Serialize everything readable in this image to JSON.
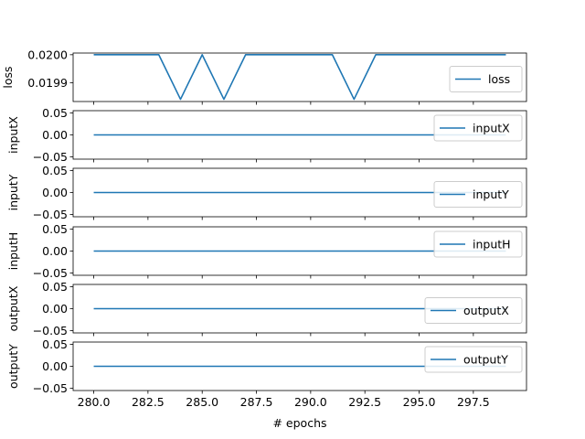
{
  "chart_data": [
    {
      "type": "line",
      "ylabel": "loss",
      "legend": "loss",
      "legend_placement": "right",
      "ylim": [
        0.019833,
        0.020006
      ],
      "yticks": [
        0.0199,
        0.02
      ],
      "ytick_labels": [
        "0.0199",
        "0.0200"
      ],
      "series": [
        {
          "name": "loss",
          "x": [
            280,
            281,
            282,
            283,
            284,
            285,
            286,
            287,
            288,
            289,
            290,
            291,
            292,
            293,
            294,
            295,
            296,
            297,
            298,
            299
          ],
          "y": [
            0.02,
            0.02,
            0.02,
            0.02,
            0.019841,
            0.02,
            0.019841,
            0.02,
            0.02,
            0.02,
            0.02,
            0.02,
            0.019841,
            0.02,
            0.02,
            0.02,
            0.02,
            0.02,
            0.02,
            0.02
          ]
        }
      ]
    },
    {
      "type": "line",
      "ylabel": "inputX",
      "legend": "inputX",
      "legend_placement": "upper right",
      "ylim": [
        -0.055,
        0.055
      ],
      "yticks": [
        -0.05,
        0.0,
        0.05
      ],
      "ytick_labels": [
        "−0.05",
        "0.00",
        "0.05"
      ],
      "series": [
        {
          "name": "inputX",
          "x": [
            280,
            281,
            282,
            283,
            284,
            285,
            286,
            287,
            288,
            289,
            290,
            291,
            292,
            293,
            294,
            295,
            296,
            297,
            298,
            299
          ],
          "y": [
            0,
            0,
            0,
            0,
            0,
            0,
            0,
            0,
            0,
            0,
            0,
            0,
            0,
            0,
            0,
            0,
            0,
            0,
            0,
            0
          ]
        }
      ]
    },
    {
      "type": "line",
      "ylabel": "inputY",
      "legend": "inputY",
      "legend_placement": "right",
      "ylim": [
        -0.055,
        0.055
      ],
      "yticks": [
        -0.05,
        0.0,
        0.05
      ],
      "ytick_labels": [
        "−0.05",
        "0.00",
        "0.05"
      ],
      "series": [
        {
          "name": "inputY",
          "x": [
            280,
            281,
            282,
            283,
            284,
            285,
            286,
            287,
            288,
            289,
            290,
            291,
            292,
            293,
            294,
            295,
            296,
            297,
            298,
            299
          ],
          "y": [
            0,
            0,
            0,
            0,
            0,
            0,
            0,
            0,
            0,
            0,
            0,
            0,
            0,
            0,
            0,
            0,
            0,
            0,
            0,
            0
          ]
        }
      ]
    },
    {
      "type": "line",
      "ylabel": "inputH",
      "legend": "inputH",
      "legend_placement": "upper right",
      "ylim": [
        -0.055,
        0.055
      ],
      "yticks": [
        -0.05,
        0.0,
        0.05
      ],
      "ytick_labels": [
        "−0.05",
        "0.00",
        "0.05"
      ],
      "series": [
        {
          "name": "inputH",
          "x": [
            280,
            281,
            282,
            283,
            284,
            285,
            286,
            287,
            288,
            289,
            290,
            291,
            292,
            293,
            294,
            295,
            296,
            297,
            298,
            299
          ],
          "y": [
            0,
            0,
            0,
            0,
            0,
            0,
            0,
            0,
            0,
            0,
            0,
            0,
            0,
            0,
            0,
            0,
            0,
            0,
            0,
            0
          ]
        }
      ]
    },
    {
      "type": "line",
      "ylabel": "outputX",
      "legend": "outputX",
      "legend_placement": "right",
      "ylim": [
        -0.055,
        0.055
      ],
      "yticks": [
        -0.05,
        0.0,
        0.05
      ],
      "ytick_labels": [
        "−0.05",
        "0.00",
        "0.05"
      ],
      "series": [
        {
          "name": "outputX",
          "x": [
            280,
            281,
            282,
            283,
            284,
            285,
            286,
            287,
            288,
            289,
            290,
            291,
            292,
            293,
            294,
            295,
            296,
            297,
            298,
            299
          ],
          "y": [
            0,
            0,
            0,
            0,
            0,
            0,
            0,
            0,
            0,
            0,
            0,
            0,
            0,
            0,
            0,
            0,
            0,
            0,
            0,
            0
          ]
        }
      ]
    },
    {
      "type": "line",
      "ylabel": "outputY",
      "legend": "outputY",
      "legend_placement": "upper right",
      "xlabel": "# epochs",
      "xlim": [
        279.05,
        299.95
      ],
      "xticks": [
        280,
        282.5,
        285,
        287.5,
        290,
        292.5,
        295,
        297.5
      ],
      "xtick_labels": [
        "280.0",
        "282.5",
        "285.0",
        "287.5",
        "290.0",
        "292.5",
        "295.0",
        "297.5"
      ],
      "ylim": [
        -0.055,
        0.055
      ],
      "yticks": [
        -0.05,
        0.0,
        0.05
      ],
      "ytick_labels": [
        "−0.05",
        "0.00",
        "0.05"
      ],
      "series": [
        {
          "name": "outputY",
          "x": [
            280,
            281,
            282,
            283,
            284,
            285,
            286,
            287,
            288,
            289,
            290,
            291,
            292,
            293,
            294,
            295,
            296,
            297,
            298,
            299
          ],
          "y": [
            0,
            0,
            0,
            0,
            0,
            0,
            0,
            0,
            0,
            0,
            0,
            0,
            0,
            0,
            0,
            0,
            0,
            0,
            0,
            0
          ]
        }
      ]
    }
  ]
}
